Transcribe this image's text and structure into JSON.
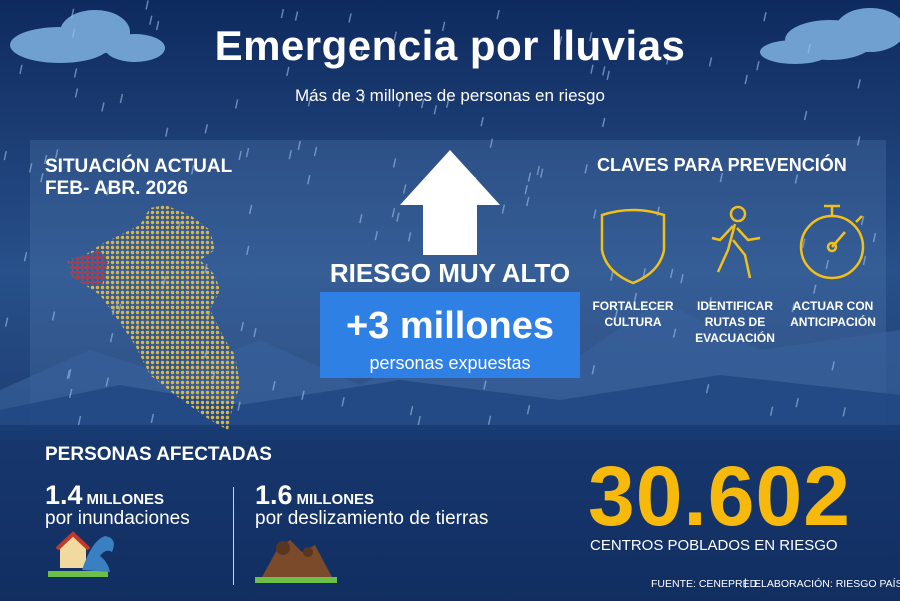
{
  "header": {
    "title": "Emergencia por lluvias",
    "subtitle": "Más de 3 millones de personas en riesgo"
  },
  "situation": {
    "heading": "SITUACIÓN ACTUAL",
    "period": "FEB- ABR. 2026"
  },
  "risk": {
    "level": "RIESGO MUY ALTO",
    "exposed": "+3 millones",
    "exposed_label": "personas expuestas"
  },
  "prevention": {
    "heading": "CLAVES PARA PREVENCIÓN",
    "items": [
      "FORTALECER CULTURA",
      "IDENTIFICAR RUTAS DE EVACUACIÓN",
      "ACTUAR CON ANTICIPACIÓN"
    ]
  },
  "affected": {
    "heading": "PERSONAS AFECTADAS",
    "items": [
      {
        "number": "1.4",
        "unit": "MILLONES",
        "cause": "por inundaciones"
      },
      {
        "number": "1.6",
        "unit": "MILLONES",
        "cause": "por deslizamiento de tierras"
      }
    ]
  },
  "towns": {
    "number": "30.602",
    "label": "CENTROS POBLADOS EN RIESGO"
  },
  "footer": {
    "source": "FUENTE: CENEPRED",
    "credit": "ELABORACIÓN: RIESGO PAÍS"
  }
}
